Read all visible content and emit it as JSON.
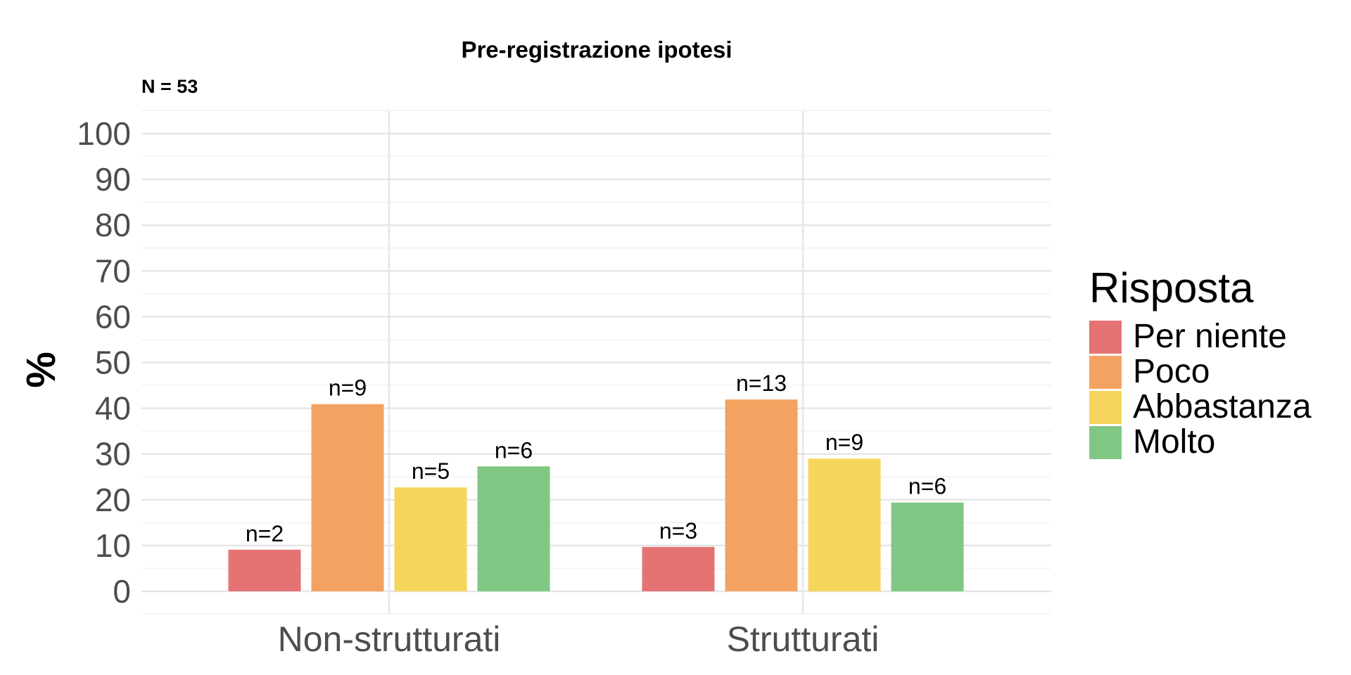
{
  "chart_data": {
    "type": "bar",
    "title": "Pre-registrazione ipotesi",
    "subtitle": "N = 53",
    "ylabel": "%",
    "xlabel": "",
    "ylim": [
      0,
      100
    ],
    "yticks": [
      0,
      10,
      20,
      30,
      40,
      50,
      60,
      70,
      80,
      90,
      100
    ],
    "grid": true,
    "categories": [
      "Non-strutturati",
      "Strutturati"
    ],
    "series": [
      {
        "name": "Per niente",
        "color": "#e57373",
        "values": [
          9.1,
          9.7
        ],
        "labels": [
          "n=2",
          "n=3"
        ]
      },
      {
        "name": "Poco",
        "color": "#f4a261",
        "values": [
          40.9,
          41.9
        ],
        "labels": [
          "n=9",
          "n=13"
        ]
      },
      {
        "name": "Abbastanza",
        "color": "#f6d55c",
        "values": [
          22.7,
          29.0
        ],
        "labels": [
          "n=5",
          "n=9"
        ]
      },
      {
        "name": "Molto",
        "color": "#81c784",
        "values": [
          27.3,
          19.4
        ],
        "labels": [
          "n=6",
          "n=6"
        ]
      }
    ],
    "legend": {
      "title": "Risposta",
      "position": "right"
    }
  }
}
